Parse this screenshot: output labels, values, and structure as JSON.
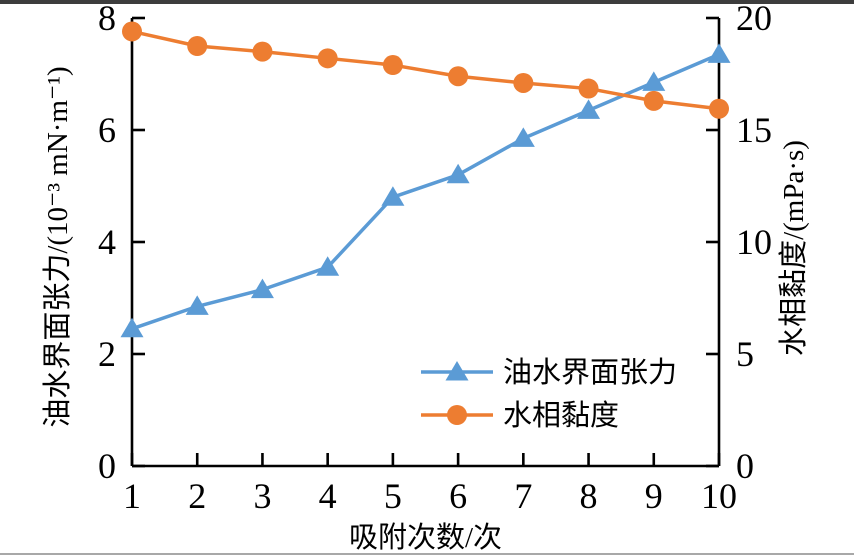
{
  "figure": {
    "background": "#ffffff",
    "top_rule_color": "#3d3d3d",
    "bottom_rule_color": "#a8a8a8",
    "text_color": "#000000"
  },
  "chart_data": {
    "type": "line",
    "x": [
      1,
      2,
      3,
      4,
      5,
      6,
      7,
      8,
      9,
      10
    ],
    "xlabel": "吸附次数/次",
    "x_ticks": [
      "1",
      "2",
      "3",
      "4",
      "5",
      "6",
      "7",
      "8",
      "9",
      "10"
    ],
    "grid": false,
    "axes": {
      "left": {
        "label": "油水界面张力/(10⁻³ mN·m⁻¹)",
        "range": [
          0,
          8
        ],
        "ticks": [
          0,
          2,
          4,
          6,
          8
        ]
      },
      "right": {
        "label": "水相黏度/(mPa·s)",
        "range": [
          0,
          20
        ],
        "ticks": [
          0,
          5,
          10,
          15,
          20
        ]
      }
    },
    "series": [
      {
        "name": "油水界面张力",
        "axis": "left",
        "color": "#5B9BD5",
        "marker": "triangle",
        "values": [
          2.45,
          2.85,
          3.15,
          3.55,
          4.8,
          5.2,
          5.85,
          6.35,
          6.85,
          7.35
        ]
      },
      {
        "name": "水相黏度",
        "axis": "right",
        "color": "#ED7D31",
        "marker": "circle",
        "values": [
          19.4,
          18.75,
          18.5,
          18.2,
          17.9,
          17.4,
          17.1,
          16.85,
          16.3,
          15.95
        ]
      }
    ],
    "legend": {
      "position": "inside-lower-right",
      "items": [
        "油水界面张力",
        "水相黏度"
      ]
    }
  }
}
